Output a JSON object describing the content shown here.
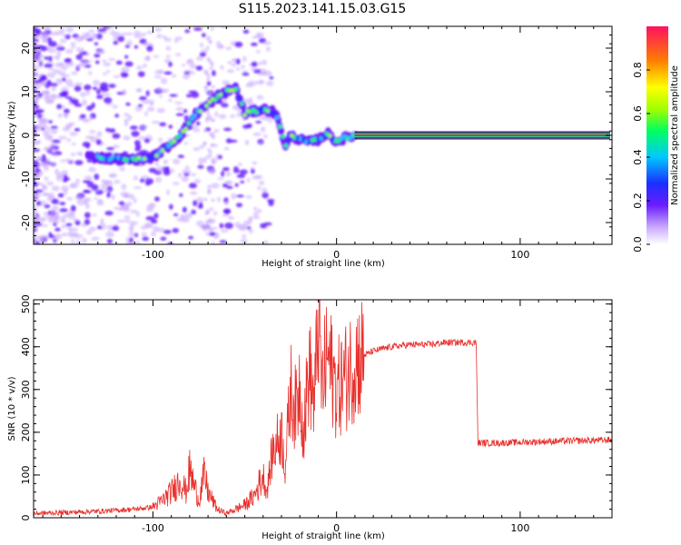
{
  "title": "S115.2023.141.15.03.G15",
  "colors": {
    "snr_line": "#e8302c",
    "spectrum_track_outer": "#000000",
    "spectrum_track_core": "#e8302c"
  },
  "chart_data": [
    {
      "type": "heatmap",
      "xlabel": "Height of straight line (km)",
      "ylabel": "Frequency (Hz)",
      "xlim": [
        -165,
        150
      ],
      "ylim": [
        -25,
        25
      ],
      "xticks": [
        -100,
        0,
        100
      ],
      "yticks": [
        -20,
        -10,
        0,
        10,
        20
      ],
      "colorbar": {
        "label": "Normalized spectral amplitude",
        "range": [
          0,
          1
        ],
        "ticks": [
          0.0,
          0.2,
          0.4,
          0.6,
          0.8
        ],
        "colormap": [
          "#ffffff",
          "#c8a8ff",
          "#6a1cff",
          "#1a30ff",
          "#00c8ff",
          "#00ff60",
          "#a0ff00",
          "#ffff00",
          "#ff8000",
          "#ff1060"
        ]
      },
      "frequency_track": {
        "x": [
          -130,
          -120,
          -110,
          -100,
          -95,
          -90,
          -85,
          -80,
          -75,
          -70,
          -65,
          -60,
          -55,
          -50,
          -45,
          -40,
          -35,
          -32,
          -30,
          -28,
          -25,
          -20,
          -15,
          -10,
          -5,
          0,
          5,
          10,
          150
        ],
        "y": [
          -5,
          -5.5,
          -5.5,
          -5,
          -3.5,
          -2,
          0,
          3,
          5.5,
          7,
          9,
          10,
          11,
          5,
          5.5,
          6,
          5.5,
          4,
          1,
          -3,
          0,
          -1,
          -1.5,
          -1,
          0.5,
          -1.5,
          -0.5,
          0,
          0
        ]
      }
    },
    {
      "type": "line",
      "xlabel": "Height of straight line (km)",
      "ylabel": "SNR (10 * v/v)",
      "xlim": [
        -165,
        150
      ],
      "ylim": [
        0,
        510
      ],
      "xticks": [
        -100,
        0,
        100
      ],
      "yticks": [
        0,
        100,
        200,
        300,
        400,
        500
      ],
      "series": [
        {
          "x": [
            -165,
            -150,
            -130,
            -110,
            -100,
            -95,
            -90,
            -85,
            -82,
            -80,
            -75,
            -72,
            -70,
            -65,
            -60,
            -55,
            -50,
            -45,
            -40,
            -38,
            -35,
            -30,
            -28,
            -25,
            -22,
            -20,
            -18,
            -15,
            -12,
            -10,
            -8,
            -5,
            0,
            5,
            10,
            15,
            20,
            25,
            30,
            40,
            50,
            60,
            70,
            76,
            77,
            90,
            110,
            130,
            150
          ],
          "y": [
            10,
            12,
            15,
            20,
            25,
            40,
            60,
            90,
            60,
            110,
            40,
            100,
            60,
            20,
            10,
            20,
            30,
            50,
            100,
            60,
            150,
            200,
            120,
            300,
            250,
            320,
            200,
            350,
            260,
            480,
            300,
            380,
            300,
            330,
            370,
            380,
            390,
            395,
            400,
            405,
            405,
            410,
            410,
            410,
            175,
            175,
            178,
            180,
            182
          ]
        }
      ]
    }
  ]
}
